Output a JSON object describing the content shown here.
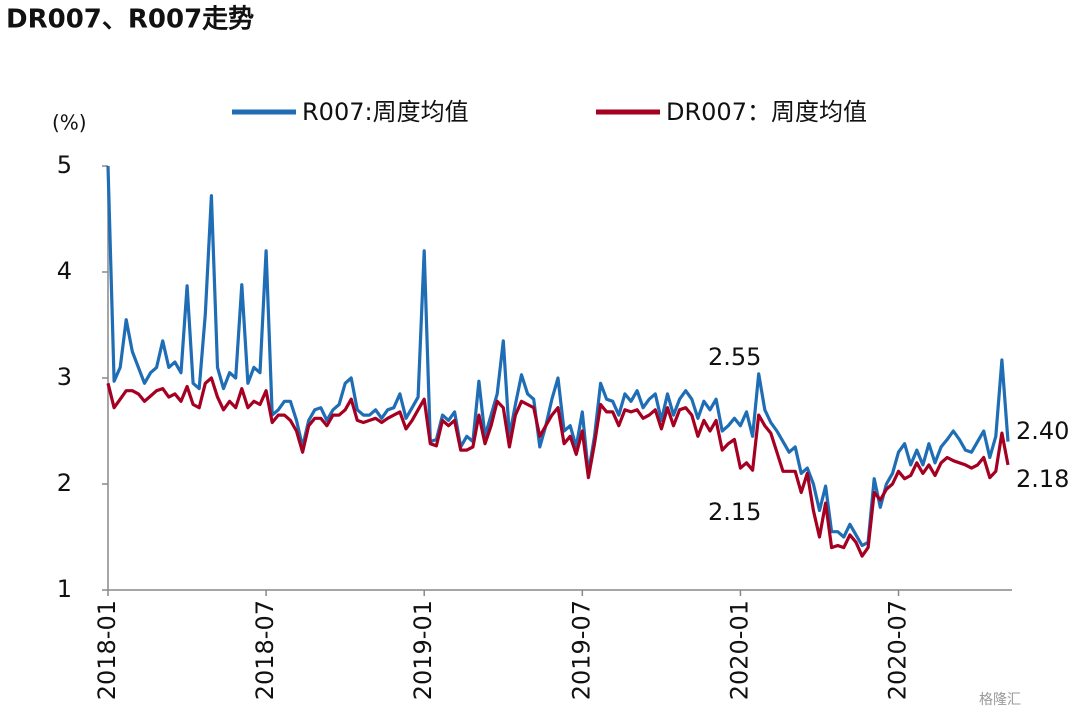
{
  "chart_data": {
    "type": "line",
    "title": "DR007、R007走势",
    "y_label": "(%)",
    "watermark": "格隆汇",
    "categories": [
      "2018-01",
      null,
      null,
      null,
      null,
      null,
      null,
      null,
      null,
      null,
      null,
      null,
      null,
      null,
      null,
      null,
      null,
      null,
      null,
      null,
      null,
      null,
      null,
      null,
      null,
      null,
      "2018-07",
      null,
      null,
      null,
      null,
      null,
      null,
      null,
      null,
      null,
      null,
      null,
      null,
      null,
      null,
      null,
      null,
      null,
      null,
      null,
      null,
      null,
      null,
      null,
      null,
      null,
      "2019-01",
      null,
      null,
      null,
      null,
      null,
      null,
      null,
      null,
      null,
      null,
      null,
      null,
      null,
      null,
      null,
      null,
      null,
      null,
      null,
      null,
      null,
      null,
      null,
      null,
      null,
      "2019-07",
      null,
      null,
      null,
      null,
      null,
      null,
      null,
      null,
      null,
      null,
      null,
      null,
      null,
      null,
      null,
      null,
      null,
      null,
      null,
      null,
      null,
      null,
      null,
      null,
      null,
      "2020-01",
      null,
      null,
      null,
      null,
      null,
      null,
      null,
      null,
      null,
      null,
      null,
      null,
      null,
      null,
      null,
      null,
      null,
      null,
      null,
      null,
      null,
      null,
      null,
      null,
      null,
      "2020-07",
      null,
      null,
      null,
      null,
      null,
      null,
      null,
      null,
      null,
      null,
      null,
      null,
      null,
      null,
      null,
      null,
      null,
      null
    ],
    "series": [
      {
        "name": "R007:周度均值",
        "color": "#1f6db5",
        "values": [
          5.0,
          2.97,
          3.1,
          3.55,
          3.25,
          3.1,
          2.95,
          3.05,
          3.1,
          3.35,
          3.1,
          3.15,
          3.05,
          3.87,
          2.95,
          2.9,
          3.6,
          4.72,
          3.1,
          2.9,
          3.05,
          3.0,
          3.88,
          2.95,
          3.1,
          3.05,
          4.2,
          2.65,
          2.7,
          2.78,
          2.78,
          2.6,
          2.35,
          2.6,
          2.7,
          2.72,
          2.6,
          2.7,
          2.75,
          2.95,
          3.0,
          2.7,
          2.65,
          2.65,
          2.7,
          2.62,
          2.7,
          2.72,
          2.85,
          2.62,
          2.72,
          2.82,
          4.2,
          2.4,
          2.42,
          2.65,
          2.6,
          2.68,
          2.35,
          2.45,
          2.4,
          2.97,
          2.45,
          2.65,
          2.85,
          3.35,
          2.45,
          2.75,
          3.03,
          2.85,
          2.8,
          2.35,
          2.55,
          2.8,
          3.0,
          2.5,
          2.55,
          2.35,
          2.68,
          2.1,
          2.45,
          2.95,
          2.8,
          2.78,
          2.65,
          2.85,
          2.78,
          2.88,
          2.72,
          2.8,
          2.85,
          2.6,
          2.85,
          2.65,
          2.8,
          2.88,
          2.8,
          2.62,
          2.78,
          2.7,
          2.8,
          2.5,
          2.55,
          2.62,
          2.55,
          2.68,
          2.45,
          3.04,
          2.7,
          2.58,
          2.5,
          2.4,
          2.3,
          2.35,
          2.1,
          2.15,
          2.0,
          1.75,
          1.98,
          1.55,
          1.55,
          1.5,
          1.62,
          1.52,
          1.42,
          1.45,
          2.05,
          1.78,
          2.0,
          2.1,
          2.3,
          2.38,
          2.18,
          2.32,
          2.18,
          2.38,
          2.2,
          2.35,
          2.42,
          2.5,
          2.42,
          2.32,
          2.3,
          2.4,
          2.5,
          2.25,
          2.45,
          3.17,
          2.4
        ]
      },
      {
        "name": "DR007：周度均值",
        "color": "#a50021",
        "values": [
          2.95,
          2.72,
          2.8,
          2.88,
          2.88,
          2.85,
          2.78,
          2.83,
          2.88,
          2.9,
          2.82,
          2.85,
          2.78,
          2.92,
          2.75,
          2.72,
          2.95,
          3.0,
          2.82,
          2.7,
          2.78,
          2.72,
          2.9,
          2.72,
          2.78,
          2.75,
          2.88,
          2.58,
          2.65,
          2.65,
          2.6,
          2.5,
          2.3,
          2.55,
          2.62,
          2.62,
          2.55,
          2.65,
          2.65,
          2.7,
          2.8,
          2.6,
          2.58,
          2.6,
          2.62,
          2.58,
          2.62,
          2.65,
          2.68,
          2.52,
          2.6,
          2.7,
          2.8,
          2.38,
          2.36,
          2.6,
          2.55,
          2.6,
          2.32,
          2.32,
          2.35,
          2.65,
          2.38,
          2.55,
          2.78,
          2.72,
          2.35,
          2.65,
          2.78,
          2.75,
          2.72,
          2.45,
          2.55,
          2.65,
          2.72,
          2.38,
          2.45,
          2.28,
          2.5,
          2.06,
          2.38,
          2.75,
          2.68,
          2.68,
          2.55,
          2.7,
          2.68,
          2.7,
          2.62,
          2.65,
          2.7,
          2.52,
          2.72,
          2.55,
          2.7,
          2.72,
          2.65,
          2.45,
          2.6,
          2.5,
          2.6,
          2.32,
          2.38,
          2.42,
          2.15,
          2.2,
          2.13,
          2.65,
          2.55,
          2.48,
          2.3,
          2.12,
          2.12,
          2.12,
          1.92,
          2.1,
          1.75,
          1.5,
          1.82,
          1.4,
          1.42,
          1.4,
          1.52,
          1.45,
          1.32,
          1.4,
          1.92,
          1.85,
          1.95,
          2.0,
          2.12,
          2.05,
          2.08,
          2.2,
          2.1,
          2.18,
          2.08,
          2.2,
          2.25,
          2.22,
          2.2,
          2.18,
          2.15,
          2.18,
          2.25,
          2.06,
          2.12,
          2.48,
          2.18
        ]
      }
    ],
    "annotations": [
      "2.55",
      "2.15",
      "2.40",
      "2.18"
    ],
    "ylim": [
      1,
      5
    ],
    "yticks": [
      1,
      2,
      3,
      4,
      5
    ],
    "grid": false
  }
}
